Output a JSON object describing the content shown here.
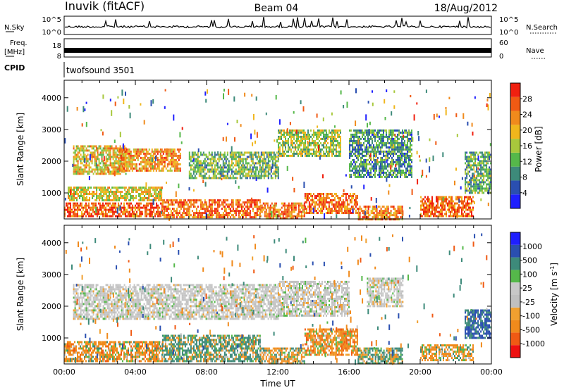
{
  "header": {
    "station": "Inuvik (fitACF)",
    "beam": "Beam 04",
    "date": "18/Aug/2012"
  },
  "top_panels": {
    "nsky_label": "N.Sky",
    "nsearch_label": "N.Search",
    "noise_ticks": [
      "10^5",
      "10^0"
    ],
    "freq_label": "Freq.",
    "freq_unit": "[MHz]",
    "freq_ticks": [
      "18",
      "8"
    ],
    "nave_label": "Nave",
    "nave_ticks": [
      "60",
      "0"
    ],
    "cpid_label": "CPID",
    "cpid_value": "twofsound 3501"
  },
  "colors": {
    "power_scale": [
      "#1f1fff",
      "#2a4fb0",
      "#3d8a7a",
      "#55b84a",
      "#a8c83c",
      "#f0b61c",
      "#f08a1c",
      "#f05a14",
      "#f02010"
    ],
    "velocity_scale": [
      "#ee1010",
      "#f05a14",
      "#f08a1c",
      "#f0a030",
      "#c0c0c0",
      "#c8c8c8",
      "#55b84a",
      "#3d8a7a",
      "#2a4fb0",
      "#1f1fff"
    ]
  },
  "chart_data": [
    {
      "type": "heatmap",
      "quantity": "power",
      "xlabel": "",
      "ylabel": "Slant Range [km]",
      "xlim": [
        "00:00",
        "24:00"
      ],
      "ylim": [
        180,
        4550
      ],
      "y_ticks": [
        1000,
        2000,
        3000,
        4000
      ],
      "colorbar": {
        "label": "Power [dB]",
        "ticks": [
          4,
          8,
          12,
          16,
          20,
          24,
          28
        ],
        "range": [
          0,
          32
        ]
      },
      "echo_regions": [
        {
          "t0": 0.0,
          "t1": 5.5,
          "r0": 250,
          "r1": 700,
          "level": 27
        },
        {
          "t0": 5.5,
          "t1": 11.0,
          "r0": 250,
          "r1": 800,
          "level": 25
        },
        {
          "t0": 11.0,
          "t1": 13.5,
          "r0": 200,
          "r1": 700,
          "level": 24
        },
        {
          "t0": 13.5,
          "t1": 16.5,
          "r0": 350,
          "r1": 1000,
          "level": 25
        },
        {
          "t0": 16.5,
          "t1": 19.0,
          "r0": 200,
          "r1": 600,
          "level": 24
        },
        {
          "t0": 20.0,
          "t1": 23.0,
          "r0": 300,
          "r1": 900,
          "level": 26
        },
        {
          "t0": 0.2,
          "t1": 5.5,
          "r0": 800,
          "r1": 1200,
          "level": 18
        },
        {
          "t0": 0.5,
          "t1": 3.5,
          "r0": 1600,
          "r1": 2500,
          "level": 19
        },
        {
          "t0": 3.0,
          "t1": 6.5,
          "r0": 1700,
          "r1": 2400,
          "level": 23
        },
        {
          "t0": 7.0,
          "t1": 12.0,
          "r0": 1500,
          "r1": 2300,
          "level": 13
        },
        {
          "t0": 12.0,
          "t1": 15.5,
          "r0": 2200,
          "r1": 3000,
          "level": 15
        },
        {
          "t0": 16.0,
          "t1": 19.5,
          "r0": 1500,
          "r1": 3000,
          "level": 10
        },
        {
          "t0": 22.5,
          "t1": 24.0,
          "r0": 1000,
          "r1": 2300,
          "level": 12
        }
      ]
    },
    {
      "type": "heatmap",
      "quantity": "velocity",
      "xlabel": "Time UT",
      "ylabel": "Slant Range [km]",
      "x_ticks": [
        "00:00",
        "04:00",
        "08:00",
        "12:00",
        "16:00",
        "20:00",
        "00:00"
      ],
      "xlim": [
        "00:00",
        "24:00"
      ],
      "ylim": [
        180,
        4550
      ],
      "y_ticks": [
        1000,
        2000,
        3000,
        4000
      ],
      "colorbar": {
        "label": "Velocity [m s^-1]",
        "ticks": [
          1000,
          500,
          100,
          25,
          -25,
          -100,
          -500,
          -1000
        ]
      },
      "echo_regions": [
        {
          "t0": 0.0,
          "t1": 5.5,
          "r0": 250,
          "r1": 900,
          "level": -200
        },
        {
          "t0": 5.5,
          "t1": 11.0,
          "r0": 300,
          "r1": 1100,
          "level": 150
        },
        {
          "t0": 11.0,
          "t1": 13.5,
          "r0": 200,
          "r1": 700,
          "level": -80
        },
        {
          "t0": 13.5,
          "t1": 16.5,
          "r0": 500,
          "r1": 1300,
          "level": -250
        },
        {
          "t0": 16.5,
          "t1": 19.0,
          "r0": 200,
          "r1": 700,
          "level": 120
        },
        {
          "t0": 20.0,
          "t1": 23.0,
          "r0": 300,
          "r1": 800,
          "level": -150
        },
        {
          "t0": 0.5,
          "t1": 12.0,
          "r0": 1600,
          "r1": 2700,
          "level": 0
        },
        {
          "t0": 12.0,
          "t1": 16.0,
          "r0": 1700,
          "r1": 2800,
          "level": 0
        },
        {
          "t0": 17.0,
          "t1": 19.0,
          "r0": 2000,
          "r1": 2900,
          "level": 0
        },
        {
          "t0": 22.5,
          "t1": 24.0,
          "r0": 1000,
          "r1": 1900,
          "level": 600
        }
      ]
    }
  ]
}
